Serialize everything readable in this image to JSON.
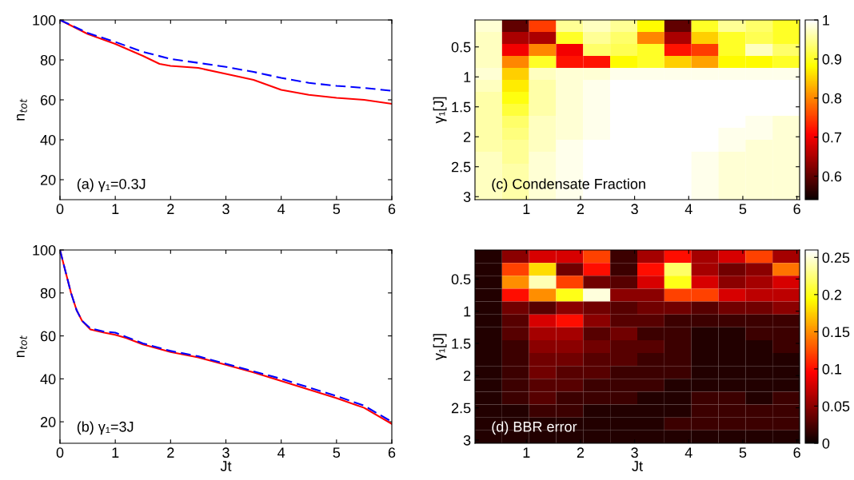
{
  "chart_data": [
    {
      "type": "line",
      "ylabel": "n$_{tot}$",
      "annotations": [
        "(a) γ₁=0.3J"
      ],
      "xlim": [
        0,
        6
      ],
      "xticks": [
        0,
        1,
        2,
        3,
        4,
        5,
        6
      ],
      "ylim": [
        10,
        100
      ],
      "yticks": [
        20,
        40,
        60,
        80,
        100
      ],
      "series": [
        {
          "color": "#ff0000",
          "line_style": "solid",
          "x": [
            0,
            0.5,
            1,
            1.5,
            1.8,
            2,
            2.5,
            3,
            3.5,
            4,
            4.5,
            5,
            5.5,
            6
          ],
          "values": [
            100,
            93,
            88,
            82,
            78,
            77,
            76,
            73,
            70,
            65,
            62.5,
            61,
            60,
            58
          ]
        },
        {
          "color": "#0000ff",
          "line_style": "dashed",
          "x": [
            0,
            0.5,
            1,
            1.5,
            2,
            2.5,
            3,
            3.5,
            4,
            4.5,
            5,
            5.5,
            6
          ],
          "values": [
            100,
            93.5,
            89,
            84,
            80.5,
            78.5,
            76.5,
            74,
            71,
            68.5,
            67,
            66,
            64.5
          ]
        }
      ]
    },
    {
      "type": "heatmap",
      "ylabel": "γ₁[J]",
      "annotations": [
        "(c) Condensate Fraction"
      ],
      "xlim": [
        0.05,
        6.05
      ],
      "xticks": [
        1,
        2,
        3,
        4,
        5,
        6
      ],
      "ylim": [
        3.05,
        0.05
      ],
      "yticks": [
        0.5,
        1,
        1.5,
        2,
        2.5,
        3
      ],
      "clim": [
        0.54,
        1
      ],
      "cticks": [
        0.6,
        0.7,
        0.8,
        0.9,
        1
      ],
      "x": [
        0.3,
        0.8,
        1.3,
        1.8,
        2.3,
        2.8,
        3.3,
        3.8,
        4.3,
        4.8,
        5.3,
        5.8
      ],
      "y": [
        0.15,
        0.35,
        0.55,
        0.75,
        0.95,
        1.15,
        1.35,
        1.55,
        1.75,
        1.95,
        2.15,
        2.35,
        2.55,
        2.75,
        2.95
      ],
      "cells": [
        [
          0.98,
          0.6,
          0.75,
          0.95,
          0.97,
          0.95,
          0.88,
          0.6,
          0.9,
          0.95,
          0.93,
          0.9
        ],
        [
          0.97,
          0.65,
          0.65,
          0.9,
          0.95,
          0.93,
          0.8,
          0.65,
          0.85,
          0.9,
          0.92,
          0.9
        ],
        [
          0.97,
          0.7,
          0.8,
          0.7,
          0.93,
          0.92,
          0.9,
          0.72,
          0.75,
          0.9,
          0.97,
          0.93
        ],
        [
          0.97,
          0.8,
          0.9,
          0.72,
          0.72,
          0.88,
          0.9,
          0.85,
          0.82,
          0.88,
          0.88,
          0.9
        ],
        [
          0.98,
          0.85,
          0.97,
          0.98,
          0.98,
          0.99,
          0.99,
          0.99,
          0.99,
          0.99,
          0.99,
          0.99
        ],
        [
          0.97,
          0.87,
          0.96,
          0.98,
          0.99,
          1,
          1,
          1,
          1,
          1,
          1,
          1
        ],
        [
          0.96,
          0.89,
          0.96,
          0.98,
          0.99,
          1,
          1,
          1,
          1,
          1,
          1,
          1
        ],
        [
          0.96,
          0.91,
          0.96,
          0.98,
          0.99,
          1,
          1,
          1,
          1,
          1,
          1,
          1
        ],
        [
          0.96,
          0.93,
          0.97,
          0.98,
          0.99,
          1,
          1,
          1,
          1,
          1,
          0.99,
          0.98
        ],
        [
          0.96,
          0.94,
          0.97,
          0.98,
          0.99,
          1,
          1,
          1,
          1,
          0.99,
          0.99,
          0.98
        ],
        [
          0.96,
          0.95,
          0.97,
          0.99,
          1,
          1,
          1,
          1,
          1,
          0.99,
          0.98,
          0.98
        ],
        [
          0.97,
          0.95,
          0.98,
          0.99,
          1,
          1,
          1,
          1,
          0.99,
          0.98,
          0.98,
          0.98
        ],
        [
          0.97,
          0.96,
          0.98,
          0.99,
          1,
          1,
          1,
          1,
          0.99,
          0.98,
          0.98,
          0.98
        ],
        [
          0.97,
          0.96,
          0.98,
          0.99,
          1,
          1,
          1,
          1,
          0.99,
          0.98,
          0.98,
          0.98
        ],
        [
          0.97,
          0.96,
          0.98,
          0.99,
          1,
          1,
          1,
          1,
          0.99,
          0.98,
          0.98,
          0.98
        ]
      ]
    },
    {
      "type": "line",
      "xlabel": "Jt",
      "ylabel": "n$_{tot}$",
      "annotations": [
        "(b) γ₁=3J"
      ],
      "xlim": [
        0,
        6
      ],
      "xticks": [
        0,
        1,
        2,
        3,
        4,
        5,
        6
      ],
      "ylim": [
        10,
        100
      ],
      "yticks": [
        20,
        40,
        60,
        80,
        100
      ],
      "series": [
        {
          "color": "#ff0000",
          "line_style": "solid",
          "x": [
            0,
            0.1,
            0.2,
            0.3,
            0.4,
            0.55,
            0.8,
            1,
            1.2,
            1.5,
            2,
            2.5,
            3,
            3.5,
            4,
            4.5,
            5,
            5.5,
            6
          ],
          "values": [
            100,
            90,
            80,
            72,
            67,
            63,
            61.5,
            60.5,
            59,
            56,
            52.5,
            50,
            46.5,
            43,
            39,
            35,
            31,
            26.5,
            19
          ]
        },
        {
          "color": "#0000ff",
          "line_style": "dashed",
          "x": [
            0,
            0.1,
            0.2,
            0.3,
            0.4,
            0.55,
            0.8,
            1,
            1.2,
            1.5,
            2,
            2.5,
            3,
            3.5,
            4,
            4.5,
            5,
            5.5,
            6
          ],
          "values": [
            100,
            90,
            80,
            72,
            67,
            63.5,
            62,
            61.5,
            59.5,
            56.5,
            53,
            50.5,
            47,
            43.5,
            40,
            36,
            32,
            27.5,
            20
          ]
        }
      ]
    },
    {
      "type": "heatmap",
      "xlabel": "Jt",
      "ylabel": "γ₁[J]",
      "annotations": [
        "(d) BBR error"
      ],
      "xlim": [
        0.05,
        6.05
      ],
      "xticks": [
        1,
        2,
        3,
        4,
        5,
        6
      ],
      "ylim": [
        3.05,
        0.05
      ],
      "yticks": [
        0.5,
        1,
        1.5,
        2,
        2.5,
        3
      ],
      "clim": [
        0,
        0.26
      ],
      "cticks": [
        0,
        0.05,
        0.1,
        0.15,
        0.2,
        0.25
      ],
      "x": [
        0.3,
        0.8,
        1.3,
        1.8,
        2.3,
        2.8,
        3.3,
        3.8,
        4.3,
        4.8,
        5.3,
        5.8
      ],
      "y": [
        0.15,
        0.35,
        0.55,
        0.75,
        0.95,
        1.15,
        1.35,
        1.55,
        1.75,
        1.95,
        2.15,
        2.35,
        2.55,
        2.75,
        2.95
      ],
      "cells": [
        [
          0.01,
          0.05,
          0.08,
          0.08,
          0.12,
          0.02,
          0.06,
          0.1,
          0.06,
          0.08,
          0.12,
          0.06
        ],
        [
          0.01,
          0.12,
          0.18,
          0.04,
          0.1,
          0.02,
          0.1,
          0.22,
          0.06,
          0.04,
          0.05,
          0.14
        ],
        [
          0.01,
          0.15,
          0.24,
          0.12,
          0.04,
          0.03,
          0.08,
          0.2,
          0.08,
          0.05,
          0.06,
          0.08
        ],
        [
          0.01,
          0.1,
          0.15,
          0.2,
          0.25,
          0.05,
          0.05,
          0.12,
          0.12,
          0.08,
          0.07,
          0.07
        ],
        [
          0.01,
          0.04,
          0.03,
          0.05,
          0.04,
          0.03,
          0.04,
          0.04,
          0.03,
          0.04,
          0.04,
          0.05
        ],
        [
          0.01,
          0.03,
          0.08,
          0.1,
          0.05,
          0.03,
          0.03,
          0.02,
          0.02,
          0.02,
          0.02,
          0.02
        ],
        [
          0.01,
          0.03,
          0.06,
          0.06,
          0.03,
          0.04,
          0.02,
          0.02,
          0.01,
          0.01,
          0.02,
          0.02
        ],
        [
          0.01,
          0.02,
          0.05,
          0.05,
          0.04,
          0.03,
          0.03,
          0.02,
          0.01,
          0.01,
          0.01,
          0.02
        ],
        [
          0.01,
          0.02,
          0.04,
          0.04,
          0.03,
          0.03,
          0.02,
          0.02,
          0.01,
          0.01,
          0.01,
          0.01
        ],
        [
          0.01,
          0.02,
          0.04,
          0.03,
          0.03,
          0.02,
          0.02,
          0.02,
          0.01,
          0.01,
          0.01,
          0.01
        ],
        [
          0.01,
          0.02,
          0.03,
          0.03,
          0.02,
          0.02,
          0.02,
          0.01,
          0.01,
          0.01,
          0.01,
          0.01
        ],
        [
          0.01,
          0.02,
          0.03,
          0.02,
          0.02,
          0.02,
          0.01,
          0.01,
          0.02,
          0.02,
          0.01,
          0.02
        ],
        [
          0.01,
          0.01,
          0.02,
          0.02,
          0.01,
          0.01,
          0.01,
          0.01,
          0.02,
          0.02,
          0.02,
          0.02
        ],
        [
          0.01,
          0.01,
          0.01,
          0.01,
          0.01,
          0.01,
          0.01,
          0.02,
          0.02,
          0.02,
          0.02,
          0.02
        ],
        [
          0.01,
          0.01,
          0.01,
          0.01,
          0.01,
          0.01,
          0.01,
          0.01,
          0.01,
          0.01,
          0.01,
          0.01
        ]
      ]
    }
  ]
}
